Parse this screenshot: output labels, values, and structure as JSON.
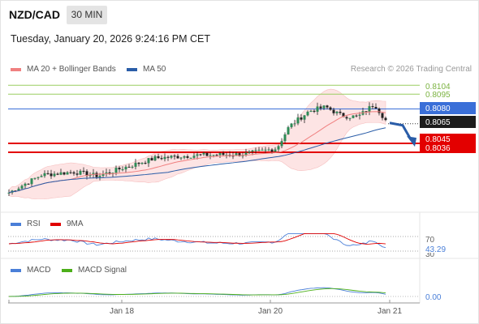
{
  "header": {
    "symbol": "NZD/CAD",
    "timeframe": "30 MIN",
    "datetime": "Tuesday, January 20, 2026 9:24:16 PM CET"
  },
  "credit": "Research © 2026 Trading Central",
  "chart_data": [
    {
      "type": "candlestick",
      "panel": "price",
      "legend": [
        {
          "name": "MA 20 + Bollinger Bands",
          "color": "#f08080"
        },
        {
          "name": "MA 50",
          "color": "#2a5da8"
        }
      ],
      "ylim": [
        0.7985,
        0.811
      ],
      "x_ticks": [
        "Jan 18",
        "Jan 20",
        "Jan 21"
      ],
      "levels": [
        {
          "label": "0.8104",
          "value": 0.8104,
          "color": "#9acd60",
          "style": "text"
        },
        {
          "label": "0.8095",
          "value": 0.8095,
          "color": "#9acd60",
          "style": "text"
        },
        {
          "label": "0.8080",
          "value": 0.808,
          "color": "#3a6fd8",
          "style": "box"
        },
        {
          "label": "0.8065",
          "value": 0.8065,
          "color": "#1c1c1c",
          "style": "box"
        },
        {
          "label": "0.8045",
          "value": 0.8045,
          "color": "#e30000",
          "style": "box"
        },
        {
          "label": "0.8036",
          "value": 0.8036,
          "color": "#e30000",
          "style": "box"
        }
      ],
      "last_price": 0.8065,
      "forecast": {
        "direction": "down",
        "from": 0.8065,
        "to": 0.804,
        "color": "#2a5da8"
      }
    },
    {
      "type": "line",
      "panel": "rsi",
      "legend": [
        {
          "name": "RSI",
          "color": "#4a7fd8"
        },
        {
          "name": "9MA",
          "color": "#e00000"
        }
      ],
      "levels": [
        "70",
        "30"
      ],
      "value_label": "43.29"
    },
    {
      "type": "line",
      "panel": "macd",
      "legend": [
        {
          "name": "MACD",
          "color": "#4a7fd8"
        },
        {
          "name": "MACD Signal",
          "color": "#4caf1a"
        }
      ],
      "value_label": "0.00"
    }
  ]
}
